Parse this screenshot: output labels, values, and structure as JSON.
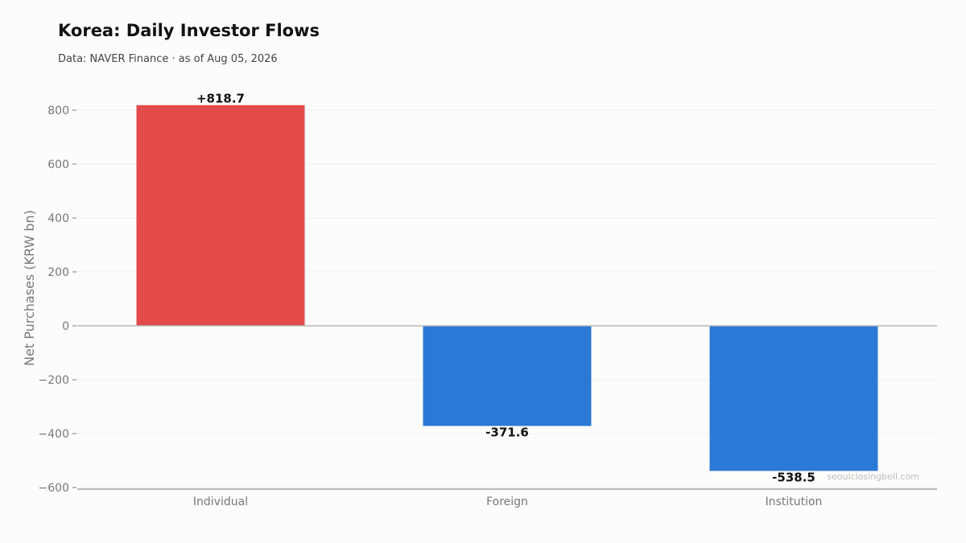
{
  "chart_data": {
    "type": "bar",
    "title": "Korea: Daily Investor Flows",
    "subtitle": "Data: NAVER Finance · as of Aug 05, 2026",
    "xlabel": "",
    "ylabel": "Net Purchases (KRW bn)",
    "categories": [
      "Individual",
      "Foreign",
      "Institution"
    ],
    "values": [
      818.7,
      -371.6,
      -538.5
    ],
    "data_labels": [
      "+818.7",
      "-371.6",
      "-538.5"
    ],
    "ylim": [
      -600,
      800
    ],
    "yticks": [
      -600,
      -400,
      -200,
      0,
      200,
      400,
      600,
      800
    ],
    "ytick_labels": [
      "−600",
      "−400",
      "−200",
      "0",
      "200",
      "400",
      "600",
      "800"
    ],
    "colors": {
      "positive": "#e34a4a",
      "negative": "#2b79d6"
    },
    "grid": true,
    "legend": "none",
    "watermark": "seoulclosingbell.com"
  }
}
